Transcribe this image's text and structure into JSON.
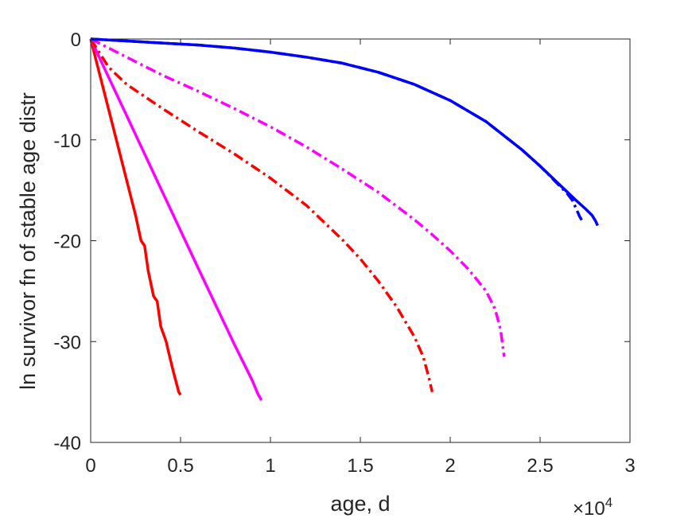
{
  "chart_data": {
    "type": "line",
    "title": "",
    "xlabel": "age, d",
    "ylabel": "ln survivor fn of stable age distr",
    "x_exponent_base": "×10",
    "x_exponent_power": "4",
    "xlim": [
      0,
      30000
    ],
    "ylim": [
      -40,
      0
    ],
    "x_tick_values": [
      0,
      5000,
      10000,
      15000,
      20000,
      25000,
      30000
    ],
    "x_tick_labels": [
      "0",
      "0.5",
      "1",
      "1.5",
      "2",
      "2.5",
      "3"
    ],
    "y_tick_values": [
      0,
      -10,
      -20,
      -30,
      -40
    ],
    "y_tick_labels": [
      "0",
      "-10",
      "-20",
      "-30",
      "-40"
    ],
    "grid": false,
    "series": [
      {
        "color": "#ff0000",
        "style": "solid",
        "x": [
          0,
          500,
          1000,
          1500,
          2000,
          2500,
          2800,
          3000,
          3200,
          3500,
          3700,
          3900,
          4200,
          4300,
          4600,
          4900,
          5000
        ],
        "y": [
          0,
          -3.5,
          -7,
          -10.5,
          -14,
          -17.5,
          -20,
          -20.5,
          -23,
          -25.5,
          -26,
          -28.5,
          -30,
          -30.8,
          -33,
          -35,
          -35.3
        ]
      },
      {
        "color": "#ff00ff",
        "style": "solid",
        "x": [
          0,
          2000,
          4000,
          6000,
          8000,
          9000,
          9300,
          9500
        ],
        "y": [
          0,
          -7.6,
          -15.2,
          -22.8,
          -30.3,
          -33.9,
          -35.2,
          -35.8
        ]
      },
      {
        "color": "#ff0000",
        "style": "dashdot",
        "x": [
          0,
          1000,
          2000,
          4000,
          6000,
          8000,
          10000,
          12000,
          14000,
          15000,
          16000,
          17000,
          18000,
          18500,
          18800,
          19000
        ],
        "y": [
          0,
          -2.8,
          -4.5,
          -6.9,
          -9.2,
          -11.4,
          -13.8,
          -16.5,
          -19.9,
          -21.8,
          -24,
          -26.5,
          -29.5,
          -31.5,
          -33.5,
          -35
        ]
      },
      {
        "color": "#ff00ff",
        "style": "dashdot",
        "x": [
          0,
          2000,
          4000,
          6000,
          8000,
          10000,
          12000,
          14000,
          16000,
          18000,
          19000,
          20000,
          21000,
          22000,
          22500,
          22800,
          23000
        ],
        "y": [
          0,
          -1.8,
          -3.6,
          -5.2,
          -6.9,
          -8.7,
          -10.7,
          -12.9,
          -15.2,
          -17.9,
          -19.4,
          -21,
          -22.8,
          -25,
          -26.8,
          -28.8,
          -31.5
        ]
      },
      {
        "color": "#0000ff",
        "style": "solid",
        "x": [
          0,
          2000,
          4000,
          6000,
          8000,
          10000,
          12000,
          14000,
          16000,
          18000,
          20000,
          22000,
          24000,
          25000,
          26000,
          27000,
          27500,
          27900,
          28100,
          28200
        ],
        "y": [
          0,
          -0.2,
          -0.4,
          -0.6,
          -0.9,
          -1.3,
          -1.8,
          -2.4,
          -3.3,
          -4.5,
          -6.1,
          -8.2,
          -11,
          -12.6,
          -14.3,
          -16,
          -16.8,
          -17.5,
          -18.1,
          -18.5
        ]
      },
      {
        "color": "#0000ff",
        "style": "dashdot",
        "x": [
          0,
          2000,
          4000,
          6000,
          8000,
          10000,
          12000,
          14000,
          16000,
          18000,
          20000,
          22000,
          24000,
          25000,
          26000,
          26500,
          26800,
          27000,
          27200,
          27400
        ],
        "y": [
          0,
          -0.2,
          -0.4,
          -0.6,
          -0.9,
          -1.3,
          -1.8,
          -2.4,
          -3.3,
          -4.5,
          -6.1,
          -8.2,
          -11,
          -12.6,
          -14.4,
          -15.3,
          -16,
          -16.8,
          -17.6,
          -18.2
        ]
      }
    ]
  }
}
